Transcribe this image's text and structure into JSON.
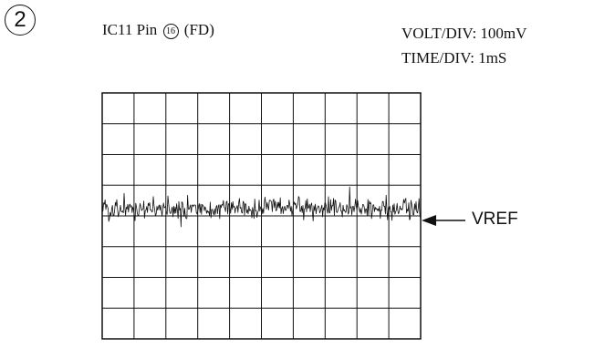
{
  "figure": {
    "step_number": "2",
    "signal_label_prefix": "IC11 Pin",
    "signal_pin_number": "16",
    "signal_label_suffix": "(FD)"
  },
  "scope_settings": {
    "volt_div_label": "VOLT/DIV:",
    "volt_div_value": "100mV",
    "time_div_label": "TIME/DIV:",
    "time_div_value": "1mS"
  },
  "graticule": {
    "horizontal_divisions": 10,
    "vertical_divisions": 8
  },
  "trace": {
    "description_type": "noise",
    "center_division_from_top": 3.75,
    "amplitude_divisions": 0.5
  },
  "reference_marker": {
    "label": "VREF",
    "division_from_top": 4.0
  }
}
